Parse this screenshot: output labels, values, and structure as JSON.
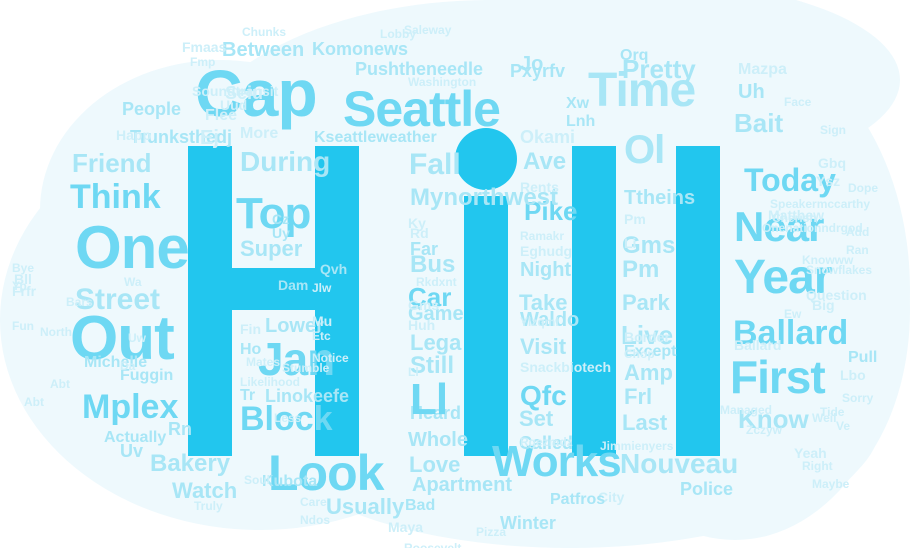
{
  "wordcloud": {
    "hero": "Hill",
    "colors": {
      "primary": "#22c6ee",
      "mid": "#6ed8f3",
      "light": "#a8e6f6",
      "pale": "#cdeff9",
      "background_cloud": "#eef9fd"
    },
    "words": [
      "Seattle",
      "Cap",
      "Time",
      "Top",
      "One",
      "Out",
      "Look",
      "Year",
      "Works",
      "First",
      "Think",
      "Street",
      "Near",
      "Ballard",
      "Jan",
      "Block",
      "Today",
      "Ol",
      "Friend",
      "Mplex",
      "Bakery",
      "During",
      "Fall",
      "Bait",
      "Pm",
      "Bus",
      "Car",
      "Qfc",
      "Nouveau",
      "Ave",
      "Pike",
      "Mynorthwest",
      "Know",
      "Lower",
      "Linokeefe",
      "Apartment",
      "Lega",
      "Set",
      "Live",
      "Pushtheneedle",
      "Pretty",
      "Seiu",
      "Uh",
      "Kseattleweather",
      "Trunksthedj",
      "Super",
      "Still",
      "Take",
      "Night",
      "Park",
      "Love",
      "Whole",
      "Heard",
      "Called",
      "Watch",
      "Usually",
      "Visit",
      "Last",
      "Police",
      "Frl",
      "Amp",
      "Gms",
      "Between",
      "People",
      "Orq",
      "Xw",
      "Lnh",
      "Pxyrfv",
      "Jo",
      "Komonews",
      "Soundtransit",
      "Flee",
      "More",
      "Happ",
      "Fin",
      "Ho",
      "Tr",
      "Kubota",
      "Rn",
      "Uv",
      "Actually",
      "Michelle",
      "Frfr",
      "Fun",
      "Bll",
      "Bye",
      "Yp",
      "Fuggin",
      "Game",
      "Waldo",
      "Huh",
      "Bad",
      "Winter",
      "Ll",
      "Li",
      "Okami",
      "Rents",
      "Ky",
      "Rd",
      "Far",
      "Ttheins",
      "Except",
      "Border",
      "Mazpa",
      "Gbq",
      "Matthew",
      "Ysz",
      "Ballard",
      "Chop",
      "Managed",
      "Pull",
      "Lbo",
      "Fmaas",
      "Fmp",
      "Uud",
      "Lobby",
      "Chunks",
      "Saleway",
      "Washington",
      "Uw",
      "North",
      "Da",
      "Abt",
      "Soul",
      "Maya",
      "Ndos",
      "City",
      "Pizza",
      "Roosevelt",
      "Jimmienyers",
      "Patfros",
      "Truly",
      "Care",
      "Abt",
      "Bars",
      "Wa",
      "Sign",
      "Ew",
      "Face",
      "Onenationndrgod",
      "Cherish",
      "Speakermccarthy",
      "Knowww",
      "Snowflakes",
      "Question",
      "Big",
      "Add",
      "Ran",
      "Dope",
      "Yeah",
      "Right",
      "Weil",
      "Ve",
      "Maybe",
      "Sorry",
      "Tide",
      "Dam",
      "Qvh",
      "Jlw",
      "Uy",
      "Cz",
      "Mu",
      "Etc",
      "Ej",
      "Pm",
      "Gms",
      "Ll",
      "Zczyw",
      "Rgezmdz",
      "Snackbiotech",
      "Ylzqml",
      "Ramakr",
      "Eghudg",
      "Rkdxnt",
      "Likelihood",
      "Notice",
      "Stumble",
      "Less",
      "Mates",
      "Good"
    ]
  }
}
